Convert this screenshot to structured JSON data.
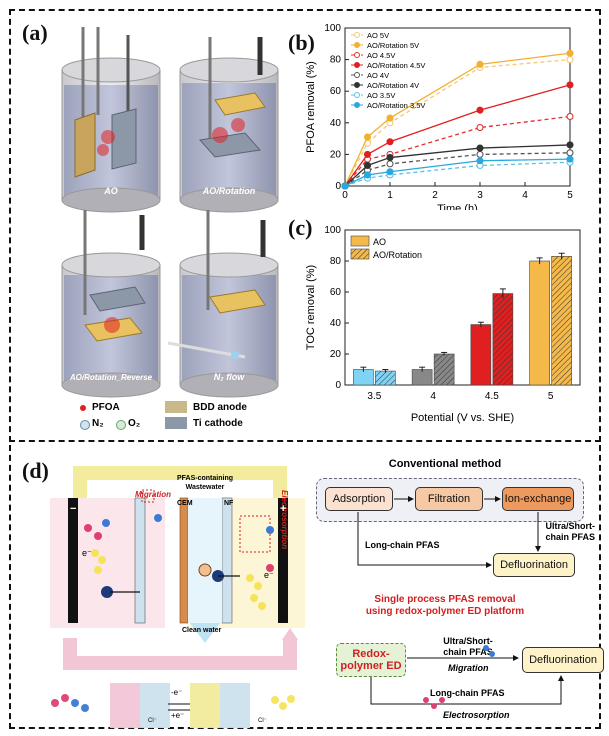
{
  "panels": {
    "a": "(a)",
    "b": "(b)",
    "c": "(c)",
    "d": "(d)"
  },
  "panel_a": {
    "reactors": [
      "AO",
      "AO/Rotation",
      "AO/Rotation_Reverse",
      "N₂ flow"
    ],
    "legend": {
      "pfoa": "PFOA",
      "n2": "N₂",
      "o2": "O₂",
      "bdd": "BDD anode",
      "ti": "Ti cathode"
    }
  },
  "chart_data": [
    {
      "type": "line",
      "title": "",
      "xlabel": "Time (h)",
      "ylabel": "PFOA removal (%)",
      "x": [
        0,
        0.5,
        1,
        3,
        5
      ],
      "xlim": [
        0,
        5
      ],
      "ylim": [
        0,
        100
      ],
      "xticks": [
        "0",
        "1",
        "2",
        "3",
        "4",
        "5"
      ],
      "yticks": [
        "0",
        "20",
        "40",
        "60",
        "80",
        "100"
      ],
      "series": [
        {
          "name": "AO 5V",
          "values": [
            0,
            27,
            40,
            75,
            80
          ],
          "color": "#f5c77a",
          "dashed": true,
          "open": true
        },
        {
          "name": "AO/Rotation 5V",
          "values": [
            0,
            31,
            43,
            77,
            84
          ],
          "color": "#f0b030",
          "dashed": false,
          "open": false
        },
        {
          "name": "AO 4.5V",
          "values": [
            0,
            17,
            20,
            37,
            44
          ],
          "color": "#e03030",
          "dashed": true,
          "open": true
        },
        {
          "name": "AO/Rotation 4.5V",
          "values": [
            0,
            20,
            28,
            48,
            64
          ],
          "color": "#e02020",
          "dashed": false,
          "open": false
        },
        {
          "name": "AO 4V",
          "values": [
            0,
            10,
            14,
            20,
            21
          ],
          "color": "#555555",
          "dashed": true,
          "open": true
        },
        {
          "name": "AO/Rotation 4V",
          "values": [
            0,
            13,
            18,
            24,
            26
          ],
          "color": "#333333",
          "dashed": false,
          "open": false
        },
        {
          "name": "AO 3.5V",
          "values": [
            0,
            5,
            7,
            13,
            15
          ],
          "color": "#5bc0e8",
          "dashed": true,
          "open": true
        },
        {
          "name": "AO/Rotation 3.5V",
          "values": [
            0,
            7,
            9,
            16,
            17
          ],
          "color": "#2aa8de",
          "dashed": false,
          "open": false
        }
      ],
      "legend_position": "top-left"
    },
    {
      "type": "bar",
      "title": "",
      "xlabel": "Potential (V vs. SHE)",
      "ylabel": "TOC removal (%)",
      "categories": [
        "3.5",
        "4",
        "4.5",
        "5"
      ],
      "ylim": [
        0,
        100
      ],
      "yticks": [
        "0",
        "20",
        "40",
        "60",
        "80",
        "100"
      ],
      "series": [
        {
          "name": "AO",
          "values": [
            10,
            10,
            39,
            80
          ],
          "errors": [
            1.5,
            1.5,
            1.5,
            2
          ]
        },
        {
          "name": "AO/Rotation",
          "values": [
            9,
            20,
            59,
            83
          ],
          "errors": [
            1,
            1,
            3,
            2
          ]
        }
      ],
      "bar_colors": [
        "#7fd3f5",
        "#888888",
        "#e02020",
        "#f5b949"
      ],
      "legend_position": "top-left"
    }
  ],
  "panel_d": {
    "wastewater": "PFAS-containing Wastewater",
    "cem": "CEM",
    "nf": "NF",
    "migration": "Migration",
    "electrosorption": "Electrosorption",
    "clean_water": "Clean water",
    "minus": "−",
    "plus": "+",
    "electron": "e⁻",
    "conventional_title": "Conventional method",
    "adsorption": "Adsorption",
    "filtration": "Filtration",
    "ion_exchange": "Ion-exchange",
    "ultra_short": "Ultra/Short-chain PFAS",
    "long_chain": "Long-chain PFAS",
    "defluorination": "Defluorination",
    "single_title_1": "Single process PFAS removal",
    "single_title_2": "using redox-polymer ED platform",
    "redox_ed": "Redox-polymer ED",
    "ultra_short2": "Ultra/Short-chain PFAS",
    "migration2": "Migration",
    "defluorination2": "Defluorination",
    "long_chain2": "Long-chain PFAS",
    "electrosorption2": "Electrosorption",
    "redox_minus": "-e⁻",
    "redox_plus": "+e⁻",
    "cl": "Cl⁻"
  },
  "colors": {
    "yellow": "#f5b949",
    "red": "#e02020",
    "grey": "#888888",
    "blue": "#7fd3f5"
  }
}
